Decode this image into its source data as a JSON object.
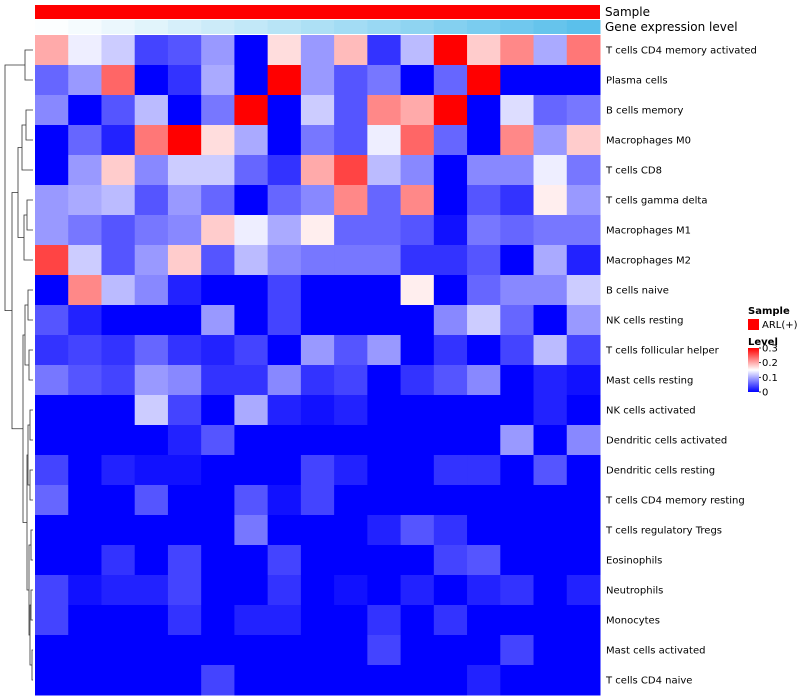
{
  "chart_data": {
    "type": "heatmap",
    "annotations": {
      "sample_label": "Sample",
      "expression_label": "Gene expression level",
      "sample_color": "#ff0000",
      "expression_low_color": "#ffffff",
      "expression_high_color": "#5bc0eb"
    },
    "rows": [
      "T cells CD4 memory activated",
      "Plasma cells",
      "B cells memory",
      "Macrophages M0",
      "T cells CD8",
      "T cells gamma delta",
      "Macrophages M1",
      "Macrophages M2",
      "B cells naive",
      "NK cells resting",
      "T cells follicular helper",
      "Mast cells resting",
      "NK cells activated",
      "Dendritic cells activated",
      "Dendritic cells resting",
      "T cells CD4 memory resting",
      "T cells regulatory  Tregs",
      "Eosinophils",
      "Neutrophils",
      "Monocytes",
      "Mast cells activated",
      "T cells CD4 naive"
    ],
    "values": [
      [
        0.2,
        0.14,
        0.12,
        0.04,
        0.05,
        0.09,
        0.0,
        0.17,
        0.09,
        0.19,
        0.03,
        0.11,
        0.3,
        0.18,
        0.22,
        0.1,
        0.23
      ],
      [
        0.06,
        0.09,
        0.24,
        0.0,
        0.03,
        0.1,
        0.0,
        0.3,
        0.09,
        0.05,
        0.07,
        0.0,
        0.06,
        0.3,
        0.0,
        0.0,
        0.0
      ],
      [
        0.08,
        0.0,
        0.05,
        0.11,
        0.0,
        0.07,
        0.3,
        0.0,
        0.12,
        0.05,
        0.22,
        0.2,
        0.3,
        0.0,
        0.13,
        0.06,
        0.07
      ],
      [
        0.0,
        0.06,
        0.02,
        0.23,
        0.3,
        0.17,
        0.1,
        0.0,
        0.07,
        0.05,
        0.14,
        0.24,
        0.06,
        0.0,
        0.22,
        0.09,
        0.18
      ],
      [
        0.0,
        0.09,
        0.18,
        0.08,
        0.12,
        0.12,
        0.06,
        0.03,
        0.2,
        0.26,
        0.11,
        0.08,
        0.0,
        0.08,
        0.08,
        0.14,
        0.07
      ],
      [
        0.09,
        0.1,
        0.11,
        0.05,
        0.09,
        0.06,
        0.0,
        0.06,
        0.08,
        0.22,
        0.06,
        0.22,
        0.0,
        0.05,
        0.03,
        0.16,
        0.09
      ],
      [
        0.09,
        0.07,
        0.05,
        0.07,
        0.08,
        0.18,
        0.14,
        0.1,
        0.16,
        0.06,
        0.06,
        0.05,
        0.01,
        0.07,
        0.06,
        0.07,
        0.07
      ],
      [
        0.26,
        0.12,
        0.05,
        0.09,
        0.18,
        0.05,
        0.11,
        0.08,
        0.07,
        0.07,
        0.07,
        0.03,
        0.03,
        0.05,
        0.0,
        0.1,
        0.02
      ],
      [
        0.0,
        0.22,
        0.11,
        0.08,
        0.02,
        0.0,
        0.0,
        0.04,
        0.0,
        0.0,
        0.0,
        0.16,
        0.0,
        0.06,
        0.08,
        0.08,
        0.12
      ],
      [
        0.05,
        0.02,
        0.0,
        0.0,
        0.0,
        0.09,
        0.0,
        0.04,
        0.0,
        0.0,
        0.0,
        0.0,
        0.08,
        0.12,
        0.06,
        0.0,
        0.09
      ],
      [
        0.03,
        0.04,
        0.03,
        0.06,
        0.03,
        0.02,
        0.04,
        0.0,
        0.09,
        0.05,
        0.09,
        0.0,
        0.03,
        0.0,
        0.04,
        0.11,
        0.04
      ],
      [
        0.07,
        0.05,
        0.04,
        0.09,
        0.08,
        0.03,
        0.03,
        0.08,
        0.03,
        0.04,
        0.0,
        0.03,
        0.05,
        0.08,
        0.0,
        0.02,
        0.01
      ],
      [
        0.0,
        0.0,
        0.0,
        0.12,
        0.04,
        0.0,
        0.1,
        0.02,
        0.01,
        0.02,
        0.0,
        0.0,
        0.0,
        0.0,
        0.0,
        0.02,
        0.0
      ],
      [
        0.0,
        0.0,
        0.0,
        0.0,
        0.02,
        0.05,
        0.0,
        0.0,
        0.0,
        0.0,
        0.0,
        0.0,
        0.0,
        0.0,
        0.09,
        0.0,
        0.08
      ],
      [
        0.04,
        0.0,
        0.02,
        0.01,
        0.01,
        0.0,
        0.0,
        0.0,
        0.04,
        0.02,
        0.0,
        0.0,
        0.03,
        0.03,
        0.0,
        0.05,
        0.0
      ],
      [
        0.06,
        0.0,
        0.0,
        0.05,
        0.0,
        0.0,
        0.05,
        0.01,
        0.04,
        0.0,
        0.0,
        0.0,
        0.0,
        0.0,
        0.0,
        0.0,
        0.0
      ],
      [
        0.0,
        0.0,
        0.0,
        0.0,
        0.0,
        0.0,
        0.07,
        0.0,
        0.0,
        0.0,
        0.02,
        0.05,
        0.03,
        0.0,
        0.0,
        0.0,
        0.0
      ],
      [
        0.0,
        0.0,
        0.03,
        0.0,
        0.04,
        0.0,
        0.0,
        0.04,
        0.0,
        0.0,
        0.0,
        0.0,
        0.04,
        0.05,
        0.0,
        0.0,
        0.0
      ],
      [
        0.04,
        0.01,
        0.02,
        0.02,
        0.04,
        0.0,
        0.0,
        0.03,
        0.0,
        0.01,
        0.0,
        0.02,
        0.0,
        0.02,
        0.03,
        0.0,
        0.02
      ],
      [
        0.04,
        0.0,
        0.0,
        0.0,
        0.03,
        0.0,
        0.02,
        0.02,
        0.0,
        0.0,
        0.03,
        0.0,
        0.03,
        0.0,
        0.0,
        0.0,
        0.0
      ],
      [
        0.0,
        0.0,
        0.0,
        0.0,
        0.0,
        0.0,
        0.0,
        0.0,
        0.0,
        0.0,
        0.04,
        0.0,
        0.0,
        0.0,
        0.04,
        0.0,
        0.0
      ],
      [
        0.0,
        0.0,
        0.0,
        0.0,
        0.0,
        0.04,
        0.0,
        0.0,
        0.0,
        0.0,
        0.0,
        0.0,
        0.0,
        0.02,
        0.0,
        0.0,
        0.0
      ]
    ],
    "expression_level": [
      0.02,
      0.06,
      0.12,
      0.18,
      0.25,
      0.31,
      0.37,
      0.43,
      0.5,
      0.56,
      0.62,
      0.68,
      0.75,
      0.81,
      0.87,
      0.93,
      1.0
    ],
    "color_scale": {
      "min": 0,
      "mid": 0.15,
      "max": 0.3,
      "low": "#0000ff",
      "mid_color": "#ffffff",
      "high": "#ff0000"
    },
    "legend": {
      "sample_title": "Sample",
      "sample_entry": "ARL(+)",
      "level_title": "Level",
      "ticks": [
        {
          "label": "0.3",
          "value": 0.3
        },
        {
          "label": "0.2",
          "value": 0.2
        },
        {
          "label": "0.1",
          "value": 0.1
        },
        {
          "label": "0",
          "value": 0
        }
      ]
    }
  }
}
